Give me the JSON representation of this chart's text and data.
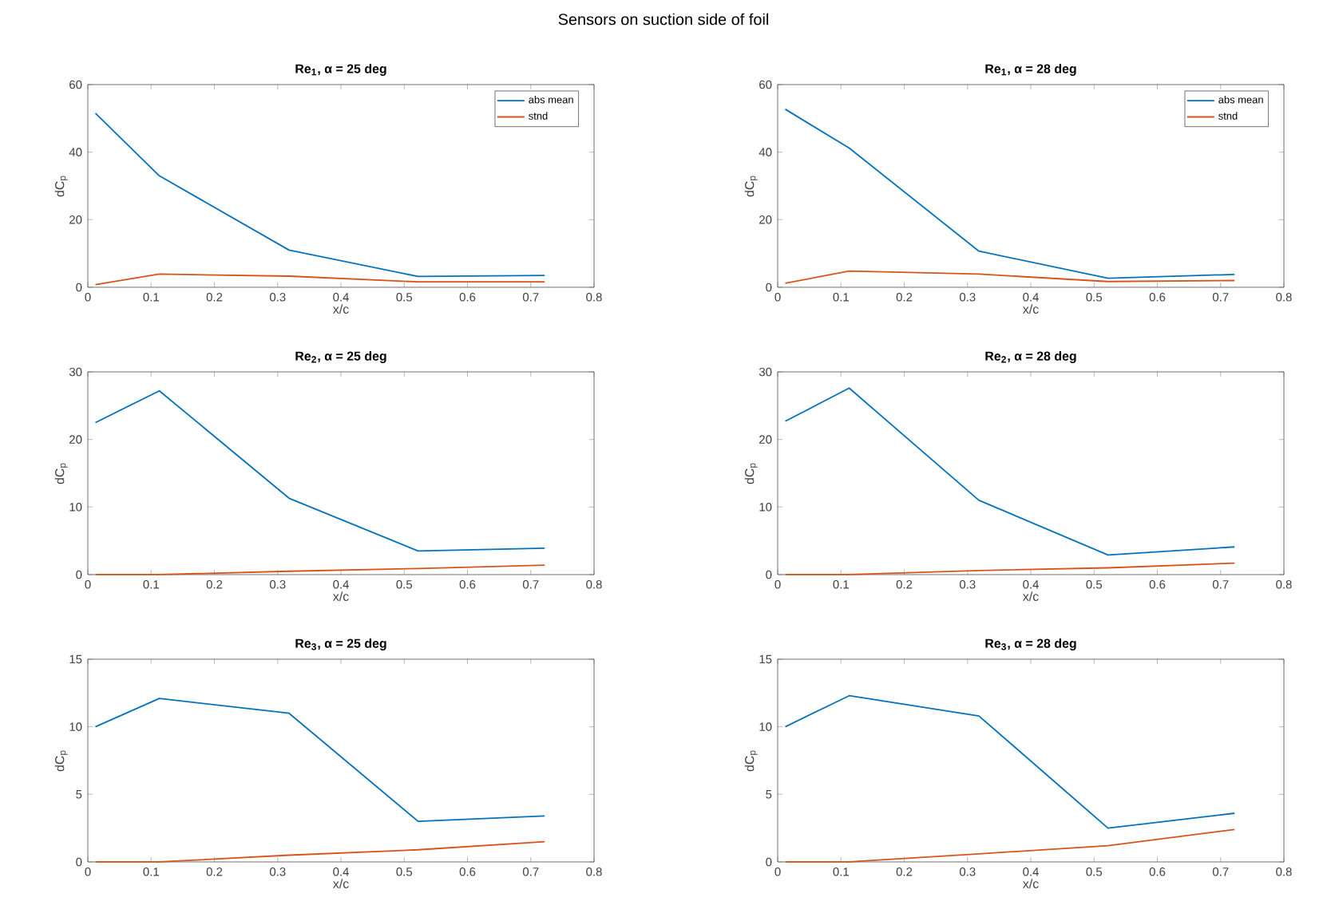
{
  "chart_data": [
    {
      "type": "line",
      "title": "Re$_{1}$, α = 25 deg",
      "xlabel": "x/c",
      "ylabel": "dC$_{p}$",
      "annotations": [
        "Sensors on suction side of foil"
      ],
      "x": [
        0.012,
        0.113,
        0.318,
        0.522,
        0.722
      ],
      "xlim": [
        0,
        0.8
      ],
      "xticks": [
        0,
        0.1,
        0.2,
        0.3,
        0.4,
        0.5,
        0.6,
        0.7,
        0.8
      ],
      "ylim": [
        0,
        60
      ],
      "yticks": [
        0,
        20,
        40,
        60
      ],
      "legend": "top right",
      "series": [
        {
          "name": "abs mean",
          "color": "#0072bd",
          "values": [
            51.5,
            33,
            11,
            3.2,
            3.5
          ]
        },
        {
          "name": "stnd",
          "color": "#d95319",
          "values": [
            0.8,
            3.9,
            3.3,
            1.6,
            1.6
          ]
        }
      ]
    },
    {
      "type": "line",
      "title": "Re$_{1}$, α = 28 deg",
      "xlabel": "x/c",
      "ylabel": "dC$_{p}$",
      "x": [
        0.012,
        0.113,
        0.318,
        0.522,
        0.722
      ],
      "xlim": [
        0,
        0.8
      ],
      "xticks": [
        0,
        0.1,
        0.2,
        0.3,
        0.4,
        0.5,
        0.6,
        0.7,
        0.8
      ],
      "ylim": [
        0,
        60
      ],
      "yticks": [
        0,
        20,
        40,
        60
      ],
      "legend": "top right",
      "series": [
        {
          "name": "abs mean",
          "color": "#0072bd",
          "values": [
            52.7,
            41.2,
            10.7,
            2.7,
            3.8
          ]
        },
        {
          "name": "stnd",
          "color": "#d95319",
          "values": [
            1.2,
            4.8,
            3.9,
            1.7,
            2.0
          ]
        }
      ]
    },
    {
      "type": "line",
      "title": "Re$_{2}$, α = 25 deg",
      "xlabel": "x/c",
      "ylabel": "dC$_{p}$",
      "x": [
        0.012,
        0.113,
        0.318,
        0.522,
        0.722
      ],
      "xlim": [
        0,
        0.8
      ],
      "xticks": [
        0,
        0.1,
        0.2,
        0.3,
        0.4,
        0.5,
        0.6,
        0.7,
        0.8
      ],
      "ylim": [
        0,
        30
      ],
      "yticks": [
        0,
        10,
        20,
        30
      ],
      "series": [
        {
          "color": "#0072bd",
          "values": [
            22.5,
            27.2,
            11.3,
            3.5,
            3.9
          ]
        },
        {
          "color": "#d95319",
          "values": [
            0,
            0,
            0.5,
            0.9,
            1.4
          ]
        }
      ]
    },
    {
      "type": "line",
      "title": "Re$_{2}$, α = 28 deg",
      "xlabel": "x/c",
      "ylabel": "dC$_{p}$",
      "x": [
        0.012,
        0.113,
        0.318,
        0.522,
        0.722
      ],
      "xlim": [
        0,
        0.8
      ],
      "xticks": [
        0,
        0.1,
        0.2,
        0.3,
        0.4,
        0.5,
        0.6,
        0.7,
        0.8
      ],
      "ylim": [
        0,
        30
      ],
      "yticks": [
        0,
        10,
        20,
        30
      ],
      "series": [
        {
          "color": "#0072bd",
          "values": [
            22.7,
            27.6,
            11.0,
            2.9,
            4.1
          ]
        },
        {
          "color": "#d95319",
          "values": [
            0,
            0,
            0.6,
            1.0,
            1.7
          ]
        }
      ]
    },
    {
      "type": "line",
      "title": "Re$_{3}$, α = 25 deg",
      "xlabel": "x/c",
      "ylabel": "dC$_{p}$",
      "x": [
        0.012,
        0.113,
        0.318,
        0.522,
        0.722
      ],
      "xlim": [
        0,
        0.8
      ],
      "xticks": [
        0,
        0.1,
        0.2,
        0.3,
        0.4,
        0.5,
        0.6,
        0.7,
        0.8
      ],
      "ylim": [
        0,
        15
      ],
      "yticks": [
        0,
        5,
        10,
        15
      ],
      "series": [
        {
          "color": "#0072bd",
          "values": [
            10.0,
            12.1,
            11.0,
            3.0,
            3.4
          ]
        },
        {
          "color": "#d95319",
          "values": [
            0,
            0,
            0.5,
            0.9,
            1.5
          ]
        }
      ]
    },
    {
      "type": "line",
      "title": "Re$_{3}$, α = 28 deg",
      "xlabel": "x/c",
      "ylabel": "dC$_{p}$",
      "x": [
        0.012,
        0.113,
        0.318,
        0.522,
        0.722
      ],
      "xlim": [
        0,
        0.8
      ],
      "xticks": [
        0,
        0.1,
        0.2,
        0.3,
        0.4,
        0.5,
        0.6,
        0.7,
        0.8
      ],
      "ylim": [
        0,
        15
      ],
      "yticks": [
        0,
        5,
        10,
        15
      ],
      "series": [
        {
          "color": "#0072bd",
          "values": [
            10.0,
            12.3,
            10.8,
            2.5,
            3.6
          ]
        },
        {
          "color": "#d95319",
          "values": [
            0,
            0,
            0.6,
            1.2,
            2.4
          ]
        }
      ]
    }
  ]
}
